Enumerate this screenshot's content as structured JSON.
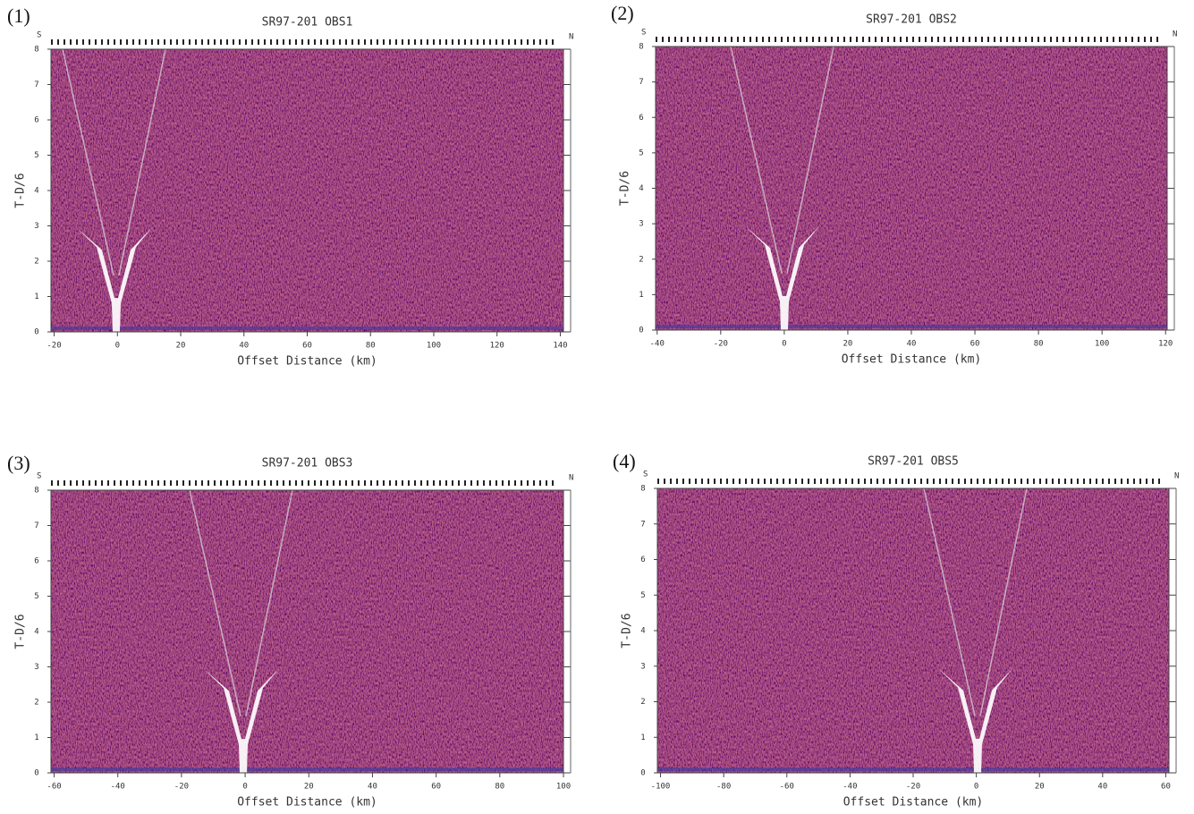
{
  "chart_data": [
    {
      "type": "section",
      "panel": "(1)",
      "title": "SR97-201 OBS1",
      "left_label": "S",
      "right_label": "N",
      "xlabel": "Offset Distance (km)",
      "ylabel": "T-D/6",
      "xlim": [
        -21,
        141
      ],
      "xticks": [
        -20,
        0,
        20,
        40,
        60,
        80,
        100,
        120,
        140
      ],
      "ylim": [
        0,
        8
      ],
      "yticks": [
        0,
        1,
        2,
        3,
        4,
        5,
        6,
        7,
        8
      ]
    },
    {
      "type": "section",
      "panel": "(2)",
      "title": "SR97-201 OBS2",
      "left_label": "S",
      "right_label": "N",
      "xlabel": "Offset Distance (km)",
      "ylabel": "T-D/6",
      "xlim": [
        -40.5,
        120.5
      ],
      "xticks": [
        -40,
        -20,
        0,
        20,
        40,
        60,
        80,
        100,
        120
      ],
      "ylim": [
        0,
        8
      ],
      "yticks": [
        0,
        1,
        2,
        3,
        4,
        5,
        6,
        7,
        8
      ]
    },
    {
      "type": "section",
      "panel": "(3)",
      "title": "SR97-201 OBS3",
      "left_label": "S",
      "right_label": "N",
      "xlabel": "Offset Distance (km)",
      "ylabel": "T-D/6",
      "xlim": [
        -61,
        100
      ],
      "xticks": [
        -60,
        -40,
        -20,
        0,
        20,
        40,
        60,
        80,
        100
      ],
      "ylim": [
        0,
        8
      ],
      "yticks": [
        0,
        1,
        2,
        3,
        4,
        5,
        6,
        7,
        8
      ]
    },
    {
      "type": "section",
      "panel": "(4)",
      "title": "SR97-201 OBS5",
      "left_label": "S",
      "right_label": "N",
      "xlabel": "Offset Distance (km)",
      "ylabel": "T-D/6",
      "xlim": [
        -101,
        61
      ],
      "xticks": [
        -100,
        -80,
        -60,
        -40,
        -20,
        0,
        20,
        40,
        60
      ],
      "ylim": [
        0,
        8
      ],
      "yticks": [
        0,
        1,
        2,
        3,
        4,
        5,
        6,
        7,
        8
      ]
    }
  ]
}
